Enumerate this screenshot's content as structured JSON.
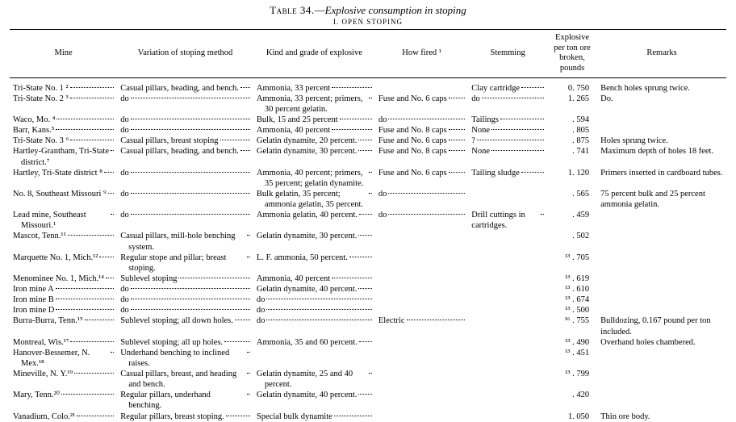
{
  "title": {
    "label": "Table 34.",
    "dash": "—",
    "name": "Explosive consumption in stoping",
    "section": "I. OPEN STOPING"
  },
  "columns": [
    "Mine",
    "Variation of stoping method",
    "Kind and grade of explosive",
    "How fired ¹",
    "Stemming",
    "Explosive per ton ore broken, pounds",
    "Remarks"
  ],
  "rows": [
    {
      "mine": "Tri-State No. 1 ²",
      "var": "Casual pillars, heading, and bench.",
      "kind": "Ammonia, 33 percent",
      "fired": "",
      "stem": "Clay cartridge",
      "expl": "0. 750",
      "rem": "Bench holes sprung twice."
    },
    {
      "mine": "Tri-State No. 2 ³",
      "var": "do",
      "kind": "Ammonia, 33 percent; primers, 30 percent gelatin.",
      "fired": "Fuse and No. 6 caps",
      "stem": "do",
      "expl": "1. 265",
      "rem": "Do."
    },
    {
      "mine": "Waco, Mo. ⁴",
      "var": "do",
      "kind": "Bulk, 15 and 25 percent",
      "fired": "do",
      "stem": "Tailings",
      "expl": ". 594",
      "rem": ""
    },
    {
      "mine": "Barr, Kans.⁵",
      "var": "do",
      "kind": "Ammonia, 40 percent",
      "fired": "Fuse and No. 8 caps",
      "stem": "None",
      "expl": ". 805",
      "rem": ""
    },
    {
      "mine": "Tri-State No. 3 ⁶",
      "var": "Casual pillars, breast stoping",
      "kind": "Gelatin dynamite, 20 percent.",
      "fired": "Fuse and No. 6 caps",
      "stem": "?",
      "expl": ". 875",
      "rem": "Holes sprung twice."
    },
    {
      "mine": "Hartley-Grantham, Tri-State district.⁷",
      "var": "Casual pillars, heading, and bench.",
      "kind": "Gelatin dynamite, 30 percent.",
      "fired": "Fuse and No. 8 caps",
      "stem": "None",
      "expl": ". 741",
      "rem": "Maximum depth of holes 18 feet."
    },
    {
      "mine": "Hartley, Tri-State district ⁸",
      "var": "do",
      "kind": "Ammonia, 40 percent; primers, 35 percent; gelatin dynamite.",
      "fired": "Fuse and No. 6 caps",
      "stem": "Tailing sludge",
      "expl": "1. 120",
      "rem": "Primers inserted in cardboard tubes."
    },
    {
      "mine": "No. 8, Southeast Missouri ⁹",
      "var": "do",
      "kind": "Bulk gelatin, 35 percent; ammonia gelatin, 35 percent.",
      "fired": "do",
      "stem": "",
      "expl": ". 565",
      "rem": "75 percent bulk and 25 percent ammonia gelatin."
    },
    {
      "mine": "Lead mine, Southeast Missouri.¹",
      "var": "do",
      "kind": "Ammonia gelatin, 40 percent.",
      "fired": "do",
      "stem": "Drill cuttings in cartridges.",
      "expl": ". 459",
      "rem": ""
    },
    {
      "mine": "Mascot, Tenn.¹¹",
      "var": "Casual pillars, mill-hole benching system.",
      "kind": "Gelatin dynamite, 30 percent.",
      "fired": "",
      "stem": "",
      "expl": ". 502",
      "rem": ""
    },
    {
      "mine": "Marquette No. 1, Mich.¹²",
      "var": "Regular stope and pillar; breast stoping.",
      "kind": "L. F. ammonia, 50 percent.",
      "fired": "",
      "stem": "",
      "expl": "¹³ . 705",
      "rem": ""
    },
    {
      "mine": "Menominee No. 1, Mich.¹⁴",
      "var": "Sublevel stoping",
      "kind": "Ammonia, 40 percent",
      "fired": "",
      "stem": "",
      "expl": "¹³ . 619",
      "rem": ""
    },
    {
      "mine": "Iron mine A",
      "var": "do",
      "kind": "Gelatin dynamite, 40 percent.",
      "fired": "",
      "stem": "",
      "expl": "¹³ . 610",
      "rem": ""
    },
    {
      "mine": "Iron mine B",
      "var": "do",
      "kind": "do",
      "fired": "",
      "stem": "",
      "expl": "¹³ . 674",
      "rem": ""
    },
    {
      "mine": "Iron mine D",
      "var": "do",
      "kind": "do",
      "fired": "",
      "stem": "",
      "expl": "¹³ . 500",
      "rem": ""
    },
    {
      "mine": "Burra-Burra, Tenn.¹⁵",
      "var": "Sublevel stoping; all down holes.",
      "kind": "do",
      "fired": "Electric",
      "stem": "",
      "expl": "¹⁶ . 755",
      "rem": "Bulldozing, 0.167 pound per ton included."
    },
    {
      "mine": "Montreal, Wis.¹⁷",
      "var": "Sublevel stoping; all up holes.",
      "kind": "Ammonia, 35 and 60 percent.",
      "fired": "",
      "stem": "",
      "expl": "¹³ . 490",
      "rem": "Overhand holes chambered."
    },
    {
      "mine": "Hanover-Bessemer, N. Mex.¹⁸",
      "var": "Underhand benching to inclined raises.",
      "kind": "",
      "fired": "",
      "stem": "",
      "expl": "¹³ . 451",
      "rem": ""
    },
    {
      "mine": "Mineville, N. Y.¹⁹",
      "var": "Casual pillars, breast, and heading and bench.",
      "kind": "Gelatin dynamite, 25 and 40 percent.",
      "fired": "",
      "stem": "",
      "expl": "¹³ . 799",
      "rem": ""
    },
    {
      "mine": "Mary, Tenn.²⁰",
      "var": "Regular pillars, underhand benching.",
      "kind": "Gelatin dynamite, 40 percent.",
      "fired": "",
      "stem": "",
      "expl": ". 420",
      "rem": ""
    },
    {
      "mine": "Vanadium, Colo.²¹",
      "var": "Regular pillars, breast stoping.",
      "kind": "Special bulk dynamite",
      "fired": "",
      "stem": "",
      "expl": "1. 050",
      "rem": "Thin ore body."
    }
  ]
}
